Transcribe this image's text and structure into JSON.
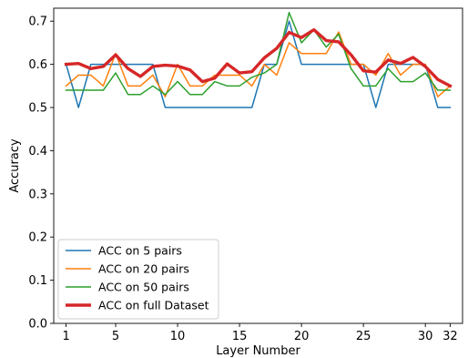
{
  "chart_data": {
    "type": "line",
    "xlabel": "Layer Number",
    "ylabel": "Accuracy",
    "xlim": [
      0,
      33
    ],
    "ylim": [
      0.0,
      0.73
    ],
    "xticks": [
      1,
      5,
      10,
      15,
      20,
      25,
      30,
      32
    ],
    "yticks": [
      0.0,
      0.1,
      0.2,
      0.3,
      0.4,
      0.5,
      0.6,
      0.7
    ],
    "ytick_labels": [
      "0.0",
      "0.1",
      "0.2",
      "0.3",
      "0.4",
      "0.5",
      "0.6",
      "0.7"
    ],
    "x": [
      1,
      2,
      3,
      4,
      5,
      6,
      7,
      8,
      9,
      10,
      11,
      12,
      13,
      14,
      15,
      16,
      17,
      18,
      19,
      20,
      21,
      22,
      23,
      24,
      25,
      26,
      27,
      28,
      29,
      30,
      31,
      32
    ],
    "legend_position": "lower-left",
    "series": [
      {
        "name": "ACC on 5 pairs",
        "color": "#1f77b4",
        "width": "thin",
        "values": [
          0.6,
          0.5,
          0.6,
          0.6,
          0.6,
          0.6,
          0.6,
          0.6,
          0.5,
          0.5,
          0.5,
          0.5,
          0.5,
          0.5,
          0.5,
          0.5,
          0.6,
          0.6,
          0.7,
          0.6,
          0.6,
          0.6,
          0.6,
          0.6,
          0.6,
          0.5,
          0.6,
          0.6,
          0.6,
          0.6,
          0.5,
          0.5
        ]
      },
      {
        "name": "ACC on 20 pairs",
        "color": "#ff7f0e",
        "width": "thin",
        "values": [
          0.55,
          0.575,
          0.575,
          0.55,
          0.625,
          0.55,
          0.55,
          0.575,
          0.525,
          0.6,
          0.55,
          0.55,
          0.575,
          0.575,
          0.575,
          0.55,
          0.6,
          0.575,
          0.65,
          0.625,
          0.625,
          0.625,
          0.675,
          0.6,
          0.6,
          0.575,
          0.625,
          0.575,
          0.6,
          0.6,
          0.525,
          0.55
        ]
      },
      {
        "name": "ACC on 50 pairs",
        "color": "#2ca02c",
        "width": "thin",
        "values": [
          0.54,
          0.54,
          0.54,
          0.54,
          0.58,
          0.53,
          0.53,
          0.55,
          0.53,
          0.56,
          0.53,
          0.53,
          0.56,
          0.55,
          0.55,
          0.57,
          0.58,
          0.6,
          0.72,
          0.65,
          0.68,
          0.64,
          0.67,
          0.59,
          0.55,
          0.55,
          0.59,
          0.56,
          0.56,
          0.58,
          0.54,
          0.54
        ]
      },
      {
        "name": "ACC on full Dataset",
        "color": "#d62728",
        "width": "thick",
        "values": [
          0.6,
          0.602,
          0.59,
          0.595,
          0.622,
          0.59,
          0.572,
          0.595,
          0.598,
          0.596,
          0.587,
          0.56,
          0.568,
          0.601,
          0.58,
          0.583,
          0.615,
          0.637,
          0.674,
          0.662,
          0.68,
          0.655,
          0.652,
          0.622,
          0.585,
          0.582,
          0.61,
          0.602,
          0.616,
          0.595,
          0.565,
          0.55
        ]
      }
    ]
  }
}
